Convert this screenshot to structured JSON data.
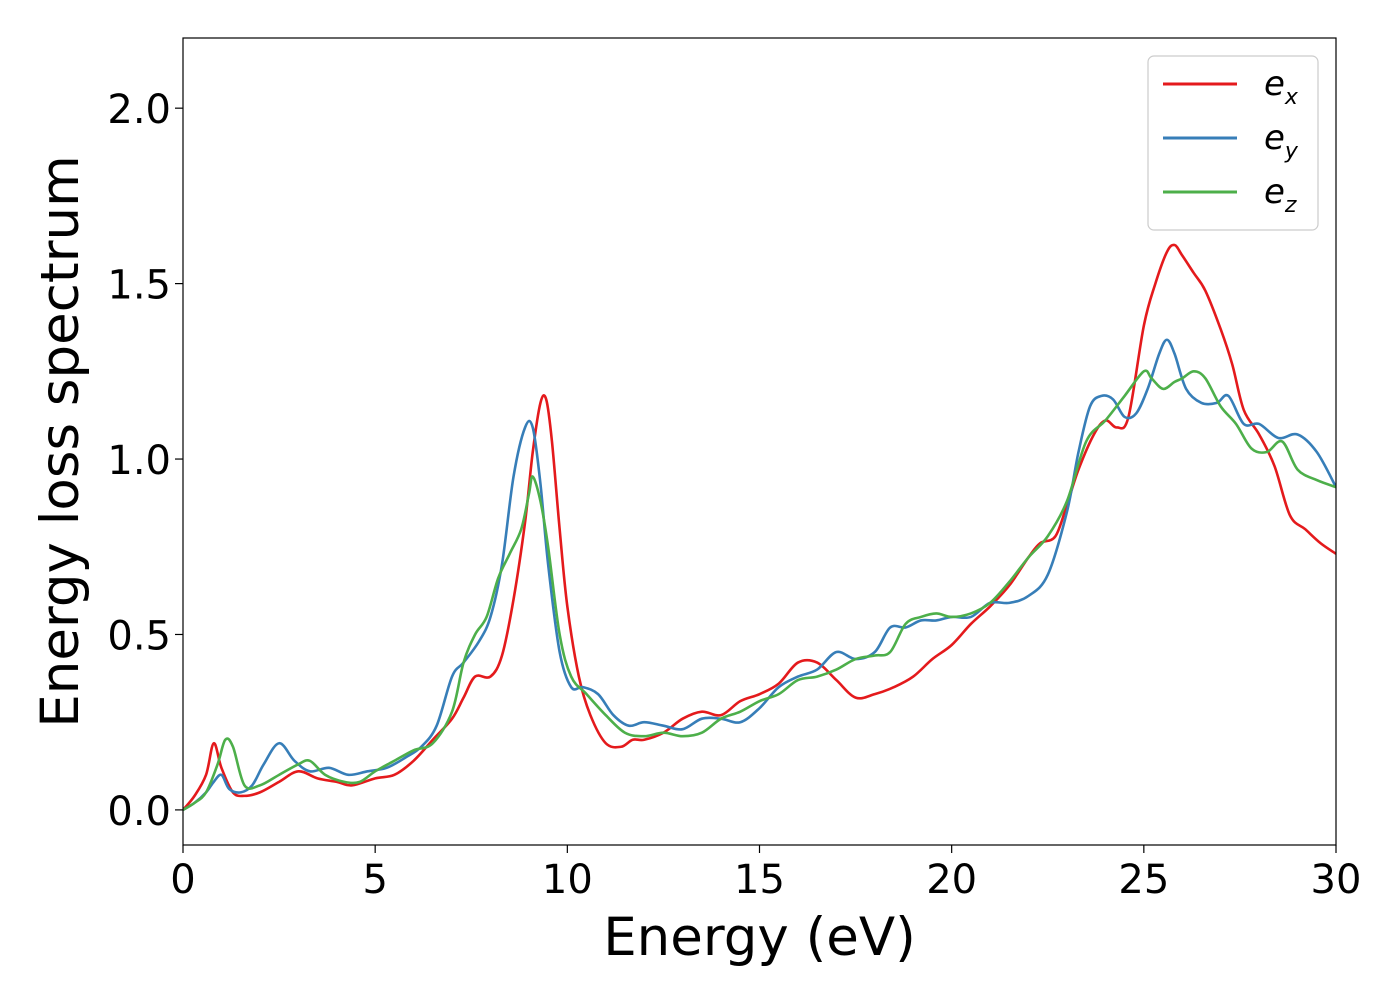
{
  "chart_data": {
    "type": "line",
    "title": "",
    "xlabel": "Energy (eV)",
    "ylabel": "Energy loss spectrum",
    "xlim": [
      0,
      30
    ],
    "ylim": [
      -0.1,
      2.2
    ],
    "xticks": [
      0,
      5,
      10,
      15,
      20,
      25,
      30
    ],
    "xtick_labels": [
      "0",
      "5",
      "10",
      "15",
      "20",
      "25",
      "30"
    ],
    "yticks": [
      0.0,
      0.5,
      1.0,
      1.5,
      2.0
    ],
    "ytick_labels": [
      "0.0",
      "0.5",
      "1.0",
      "1.5",
      "2.0"
    ],
    "grid": false,
    "legend_position": "top-right",
    "series": [
      {
        "name": "e_x",
        "base": "e",
        "sub": "x",
        "color": "#e41a1c",
        "x": [
          0,
          0.3,
          0.6,
          0.8,
          1.0,
          1.3,
          1.6,
          2.0,
          2.5,
          3.0,
          3.5,
          4.0,
          4.4,
          5.0,
          5.5,
          6.0,
          6.5,
          7.0,
          7.3,
          7.6,
          8.0,
          8.3,
          8.6,
          8.9,
          9.1,
          9.3,
          9.45,
          9.6,
          9.8,
          10.0,
          10.3,
          10.6,
          11.0,
          11.4,
          11.7,
          12.0,
          12.5,
          13.0,
          13.5,
          14.0,
          14.5,
          15.0,
          15.5,
          16.0,
          16.5,
          17.0,
          17.5,
          18.0,
          18.5,
          19.0,
          19.5,
          20.0,
          20.5,
          21.0,
          21.5,
          22.0,
          22.3,
          22.7,
          23.0,
          23.3,
          23.7,
          24.0,
          24.3,
          24.6,
          25.0,
          25.3,
          25.6,
          25.8,
          26.0,
          26.3,
          26.6,
          27.0,
          27.3,
          27.6,
          28.0,
          28.4,
          28.8,
          29.2,
          29.6,
          30.0
        ],
        "values": [
          0.0,
          0.04,
          0.1,
          0.19,
          0.12,
          0.05,
          0.04,
          0.05,
          0.08,
          0.11,
          0.09,
          0.08,
          0.07,
          0.09,
          0.1,
          0.14,
          0.2,
          0.26,
          0.32,
          0.38,
          0.38,
          0.44,
          0.6,
          0.82,
          1.02,
          1.16,
          1.17,
          1.05,
          0.8,
          0.58,
          0.38,
          0.27,
          0.19,
          0.18,
          0.2,
          0.2,
          0.22,
          0.26,
          0.28,
          0.27,
          0.31,
          0.33,
          0.36,
          0.42,
          0.42,
          0.37,
          0.32,
          0.33,
          0.35,
          0.38,
          0.43,
          0.47,
          0.53,
          0.58,
          0.64,
          0.72,
          0.76,
          0.78,
          0.87,
          0.97,
          1.07,
          1.11,
          1.09,
          1.12,
          1.38,
          1.5,
          1.59,
          1.61,
          1.58,
          1.53,
          1.48,
          1.37,
          1.27,
          1.14,
          1.07,
          0.98,
          0.84,
          0.8,
          0.76,
          0.73
        ]
      },
      {
        "name": "e_y",
        "base": "e",
        "sub": "y",
        "color": "#377eb8",
        "x": [
          0,
          0.3,
          0.6,
          0.8,
          1.0,
          1.2,
          1.5,
          1.8,
          2.1,
          2.5,
          2.9,
          3.3,
          3.8,
          4.3,
          4.8,
          5.3,
          5.8,
          6.2,
          6.6,
          7.0,
          7.3,
          7.7,
          8.0,
          8.3,
          8.6,
          8.9,
          9.1,
          9.3,
          9.5,
          9.8,
          10.1,
          10.4,
          10.8,
          11.2,
          11.6,
          12.0,
          12.5,
          13.0,
          13.5,
          14.0,
          14.5,
          15.0,
          15.5,
          16.0,
          16.5,
          17.0,
          17.5,
          18.0,
          18.4,
          18.8,
          19.2,
          19.6,
          20.0,
          20.5,
          21.0,
          21.5,
          22.0,
          22.5,
          23.0,
          23.3,
          23.6,
          23.9,
          24.2,
          24.5,
          24.8,
          25.1,
          25.4,
          25.6,
          25.8,
          26.1,
          26.5,
          26.9,
          27.2,
          27.6,
          28.0,
          28.5,
          29.0,
          29.5,
          30.0
        ],
        "values": [
          0.0,
          0.02,
          0.05,
          0.08,
          0.1,
          0.06,
          0.05,
          0.07,
          0.13,
          0.19,
          0.14,
          0.11,
          0.12,
          0.1,
          0.11,
          0.12,
          0.15,
          0.18,
          0.24,
          0.38,
          0.42,
          0.48,
          0.55,
          0.7,
          0.95,
          1.09,
          1.09,
          0.93,
          0.7,
          0.45,
          0.35,
          0.35,
          0.33,
          0.27,
          0.24,
          0.25,
          0.24,
          0.23,
          0.26,
          0.26,
          0.25,
          0.29,
          0.35,
          0.38,
          0.4,
          0.45,
          0.43,
          0.45,
          0.52,
          0.52,
          0.54,
          0.54,
          0.55,
          0.55,
          0.59,
          0.59,
          0.61,
          0.67,
          0.85,
          1.02,
          1.15,
          1.18,
          1.17,
          1.12,
          1.13,
          1.2,
          1.3,
          1.34,
          1.3,
          1.2,
          1.16,
          1.16,
          1.18,
          1.1,
          1.1,
          1.06,
          1.07,
          1.02,
          0.92
        ]
      },
      {
        "name": "e_z",
        "base": "e",
        "sub": "z",
        "color": "#4daf4a",
        "x": [
          0,
          0.3,
          0.6,
          0.9,
          1.1,
          1.3,
          1.6,
          2.0,
          2.5,
          3.0,
          3.3,
          3.7,
          4.2,
          4.6,
          5.0,
          5.5,
          6.0,
          6.5,
          7.0,
          7.3,
          7.6,
          7.9,
          8.2,
          8.5,
          8.8,
          9.0,
          9.1,
          9.3,
          9.5,
          9.8,
          10.1,
          10.5,
          11.0,
          11.5,
          12.0,
          12.5,
          13.0,
          13.5,
          14.0,
          14.5,
          15.0,
          15.5,
          16.0,
          16.5,
          17.0,
          17.5,
          18.0,
          18.4,
          18.8,
          19.2,
          19.6,
          20.0,
          20.5,
          21.0,
          21.5,
          22.0,
          22.5,
          23.0,
          23.5,
          24.0,
          24.5,
          25.0,
          25.2,
          25.5,
          25.8,
          26.0,
          26.3,
          26.6,
          27.0,
          27.4,
          27.8,
          28.2,
          28.6,
          29.0,
          29.5,
          30.0
        ],
        "values": [
          0.0,
          0.02,
          0.05,
          0.13,
          0.2,
          0.18,
          0.07,
          0.07,
          0.1,
          0.13,
          0.14,
          0.1,
          0.08,
          0.08,
          0.11,
          0.14,
          0.17,
          0.19,
          0.28,
          0.42,
          0.5,
          0.55,
          0.66,
          0.73,
          0.8,
          0.9,
          0.95,
          0.88,
          0.75,
          0.5,
          0.38,
          0.33,
          0.27,
          0.22,
          0.21,
          0.22,
          0.21,
          0.22,
          0.26,
          0.28,
          0.31,
          0.33,
          0.37,
          0.38,
          0.4,
          0.43,
          0.44,
          0.45,
          0.53,
          0.55,
          0.56,
          0.55,
          0.56,
          0.59,
          0.65,
          0.72,
          0.78,
          0.88,
          1.05,
          1.11,
          1.18,
          1.25,
          1.23,
          1.2,
          1.22,
          1.23,
          1.25,
          1.23,
          1.15,
          1.1,
          1.03,
          1.02,
          1.05,
          0.97,
          0.94,
          0.92
        ]
      }
    ]
  }
}
